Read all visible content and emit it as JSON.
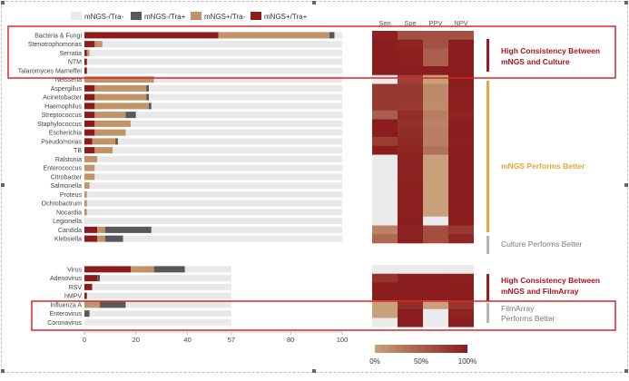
{
  "colors": {
    "neg_neg": "#e9e9e9",
    "neg_pos": "#585858",
    "pos_neg": "#c09468",
    "pos_pos": "#8e1b1b",
    "highlight_box": "#d9262b",
    "callout_dark_red": "#a8141b",
    "callout_orange": "#e3a63a",
    "callout_grey": "#b5b5b5",
    "callout_text_grey": "#7a7a7a",
    "heat_low": "#c8a07a",
    "heat_high": "#8a1d1d"
  },
  "legend": {
    "items": [
      {
        "label": "mNGS-/Tra-",
        "color_key": "neg_neg"
      },
      {
        "label": "mNGS-/Tra+",
        "color_key": "neg_pos"
      },
      {
        "label": "mNGS+/Tra-",
        "color_key": "pos_neg"
      },
      {
        "label": "mNGS+/Tra+",
        "color_key": "pos_pos"
      }
    ]
  },
  "callouts": [
    {
      "line1": "High Consistency Between",
      "line2": "mNGS and Culture",
      "style": "dark"
    },
    {
      "line1": "mNGS Performs Better",
      "line2": "",
      "style": "orange"
    },
    {
      "line1": "Culture Performs Better",
      "line2": "",
      "style": "grey"
    },
    {
      "line1": "High Consistency Between",
      "line2": "mNGS and FilmArray",
      "style": "dark"
    },
    {
      "line1": "FilmArray",
      "line2": "Performs Better",
      "style": "grey"
    }
  ],
  "heatmap_legend": {
    "ticks": [
      "0%",
      "50%",
      "100%"
    ]
  },
  "chart_data": [
    {
      "type": "bar",
      "orientation": "horizontal",
      "stacked": true,
      "panel": "mNGS vs Culture",
      "xlim": [
        0,
        100
      ],
      "xticks": [
        "0",
        "20",
        "40",
        "57",
        "80",
        "100"
      ],
      "categories": [
        "Bacteria & Fungi",
        "Stenotrophomonas",
        "Serratia",
        "NTM",
        "Talaromyces Marneffei",
        "Neisseria",
        "Aspergillus",
        "Acinetobacter",
        "Haemophilus",
        "Streptococcus",
        "Staphylococcus",
        "Escherichia",
        "Pseudomonas",
        "TB",
        "Ralstonia",
        "Enterococcus",
        "Citrobacter",
        "Salmonella",
        "Proteus",
        "Ochrobactrum",
        "Nocardia",
        "Legionella",
        "Candida",
        "Klebsiella"
      ],
      "series": [
        {
          "name": "mNGS+/Tra+",
          "values": [
            52,
            4,
            1,
            1,
            1,
            0,
            4,
            4,
            4,
            4,
            4,
            4,
            3,
            4,
            0,
            0,
            0,
            0,
            0,
            0,
            0,
            0,
            5,
            5
          ]
        },
        {
          "name": "mNGS+/Tra-",
          "values": [
            43,
            3,
            1,
            0,
            0,
            27,
            20,
            20,
            21,
            12,
            14,
            12,
            9,
            7,
            5,
            4,
            4,
            2,
            1,
            1,
            1,
            0,
            3,
            3
          ]
        },
        {
          "name": "mNGS-/Tra+",
          "values": [
            2,
            0,
            0,
            0,
            0,
            0,
            1,
            1,
            1,
            4,
            0,
            0,
            1,
            0,
            0,
            0,
            0,
            0,
            0,
            0,
            0,
            0,
            18,
            7
          ]
        },
        {
          "name": "mNGS-/Tra-",
          "values": [
            3,
            93,
            98,
            99,
            99,
            73,
            75,
            75,
            74,
            80,
            82,
            84,
            87,
            89,
            95,
            96,
            96,
            98,
            99,
            99,
            99,
            100,
            74,
            85
          ]
        }
      ]
    },
    {
      "type": "bar",
      "orientation": "horizontal",
      "stacked": true,
      "panel": "mNGS vs FilmArray",
      "xlim": [
        0,
        57
      ],
      "categories": [
        "Virus",
        "Adenovirus",
        "RSV",
        "hMPV",
        "Influenza A",
        "Enterovirus",
        "Coronavirus"
      ],
      "series": [
        {
          "name": "mNGS+/Tra+",
          "values": [
            18,
            5,
            3,
            1,
            0,
            0,
            0
          ]
        },
        {
          "name": "mNGS+/Tra-",
          "values": [
            9,
            0,
            0,
            0,
            6,
            0,
            0
          ]
        },
        {
          "name": "mNGS-/Tra+",
          "values": [
            12,
            1,
            0,
            0,
            10,
            2,
            0
          ]
        },
        {
          "name": "mNGS-/Tra-",
          "values": [
            18,
            51,
            54,
            56,
            41,
            55,
            57
          ]
        }
      ]
    },
    {
      "type": "heatmap",
      "columns": [
        "Sen",
        "Spe",
        "PPV",
        "NPV"
      ],
      "rows": [
        "Bacteria & Fungi",
        "Stenotrophomonas",
        "Serratia",
        "NTM",
        "Talaromyces Marneffei",
        "Neisseria",
        "Aspergillus",
        "Acinetobacter",
        "Haemophilus",
        "Streptococcus",
        "Staphylococcus",
        "Escherichia",
        "Pseudomonas",
        "TB",
        "Ralstonia",
        "Enterococcus",
        "Citrobacter",
        "Salmonella",
        "Proteus",
        "Ochrobactrum",
        "Nocardia",
        "Legionella",
        "Candida",
        "Klebsiella",
        "Virus",
        "Adenovirus",
        "RSV",
        "hMPV",
        "Influenza A",
        "Enterovirus",
        "Coronavirus"
      ],
      "values": [
        [
          0.97,
          0.6,
          0.6,
          0.6
        ],
        [
          1.0,
          0.95,
          0.6,
          1.0
        ],
        [
          1.0,
          0.98,
          0.5,
          1.0
        ],
        [
          1.0,
          0.99,
          0.5,
          1.0
        ],
        [
          1.0,
          1.0,
          1.0,
          1.0
        ],
        [
          null,
          0.73,
          0.0,
          1.0
        ],
        [
          0.8,
          0.8,
          0.17,
          0.99
        ],
        [
          0.8,
          0.8,
          0.17,
          0.99
        ],
        [
          0.8,
          0.78,
          0.16,
          0.99
        ],
        [
          0.5,
          0.87,
          0.25,
          0.95
        ],
        [
          1.0,
          0.85,
          0.22,
          1.0
        ],
        [
          1.0,
          0.87,
          0.25,
          1.0
        ],
        [
          0.75,
          0.91,
          0.25,
          0.99
        ],
        [
          1.0,
          0.93,
          0.36,
          1.0
        ],
        [
          null,
          0.95,
          0.0,
          1.0
        ],
        [
          null,
          0.96,
          0.0,
          1.0
        ],
        [
          null,
          0.96,
          0.0,
          1.0
        ],
        [
          null,
          0.98,
          0.0,
          1.0
        ],
        [
          null,
          0.99,
          0.0,
          1.0
        ],
        [
          null,
          0.99,
          0.0,
          1.0
        ],
        [
          null,
          0.99,
          0.0,
          1.0
        ],
        [
          null,
          1.0,
          null,
          1.0
        ],
        [
          0.22,
          0.96,
          0.62,
          0.8
        ],
        [
          0.42,
          0.97,
          0.62,
          0.92
        ],
        [
          null,
          null,
          null,
          null
        ],
        [
          0.83,
          1.0,
          1.0,
          0.98
        ],
        [
          1.0,
          1.0,
          1.0,
          1.0
        ],
        [
          1.0,
          1.0,
          1.0,
          1.0
        ],
        [
          0.0,
          0.87,
          0.0,
          0.8
        ],
        [
          0.0,
          1.0,
          null,
          0.96
        ],
        [
          null,
          1.0,
          null,
          1.0
        ]
      ]
    }
  ]
}
